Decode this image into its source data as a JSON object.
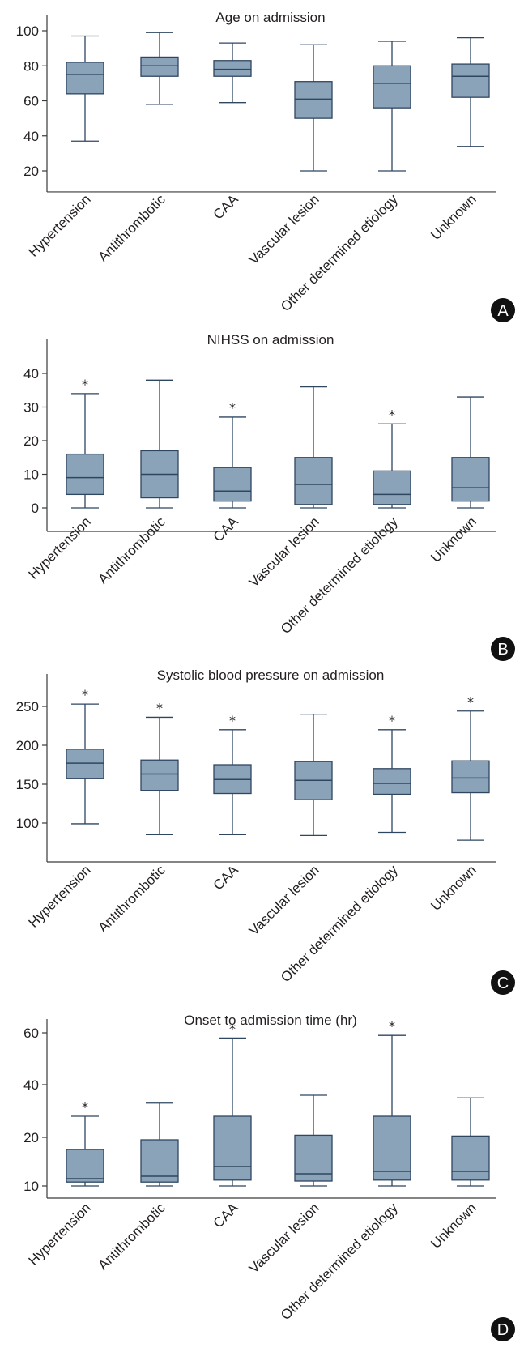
{
  "colors": {
    "box_fill": "#8ba3b8",
    "box_stroke": "#2f4661",
    "axis": "#3a3a3a",
    "badge": "#111111"
  },
  "chart_data": [
    {
      "type": "box",
      "panel": "A",
      "title": "Age on admission",
      "categories": [
        "Hypertension",
        "Antithrombotic",
        "CAA",
        "Vascular lesion",
        "Other determined etiology",
        "Unknown"
      ],
      "ylim": [
        8,
        108
      ],
      "yticks": [
        20,
        40,
        60,
        80,
        100
      ],
      "boxes": [
        {
          "min": 37,
          "q1": 64,
          "median": 75,
          "q3": 82,
          "max": 97,
          "outlier": false
        },
        {
          "min": 58,
          "q1": 74,
          "median": 80,
          "q3": 85,
          "max": 99,
          "outlier": false
        },
        {
          "min": 59,
          "q1": 74,
          "median": 78,
          "q3": 83,
          "max": 93,
          "outlier": false
        },
        {
          "min": 20,
          "q1": 50,
          "median": 61,
          "q3": 71,
          "max": 92,
          "outlier": false
        },
        {
          "min": 20,
          "q1": 56,
          "median": 70,
          "q3": 80,
          "max": 94,
          "outlier": false
        },
        {
          "min": 34,
          "q1": 62,
          "median": 74,
          "q3": 81,
          "max": 96,
          "outlier": false
        }
      ],
      "grid": false
    },
    {
      "type": "box",
      "panel": "B",
      "title": "NIHSS on admission",
      "categories": [
        "Hypertension",
        "Antithrombotic",
        "CAA",
        "Vascular lesion",
        "Other determined etiology",
        "Unknown"
      ],
      "ylim": [
        -7,
        46
      ],
      "yticks": [
        0,
        10,
        20,
        30,
        40
      ],
      "boxes": [
        {
          "min": 0,
          "q1": 4,
          "median": 9,
          "q3": 16,
          "max": 34,
          "outlier": true
        },
        {
          "min": 0,
          "q1": 3,
          "median": 10,
          "q3": 17,
          "max": 38,
          "outlier": false
        },
        {
          "min": 0,
          "q1": 2,
          "median": 5,
          "q3": 12,
          "max": 27,
          "outlier": true
        },
        {
          "min": 0,
          "q1": 1,
          "median": 7,
          "q3": 15,
          "max": 36,
          "outlier": false
        },
        {
          "min": 0,
          "q1": 1,
          "median": 4,
          "q3": 11,
          "max": 25,
          "outlier": true
        },
        {
          "min": 0,
          "q1": 2,
          "median": 6,
          "q3": 15,
          "max": 33,
          "outlier": false
        }
      ],
      "grid": false
    },
    {
      "type": "box",
      "panel": "C",
      "title": "Systolic blood pressure on admission",
      "categories": [
        "Hypertension",
        "Antithrombotic",
        "CAA",
        "Vascular lesion",
        "Other determined etiology",
        "Unknown"
      ],
      "ylim": [
        50,
        280
      ],
      "yticks": [
        100,
        150,
        200,
        250
      ],
      "boxes": [
        {
          "min": 99,
          "q1": 157,
          "median": 177,
          "q3": 195,
          "max": 253,
          "outlier": true
        },
        {
          "min": 85,
          "q1": 142,
          "median": 163,
          "q3": 181,
          "max": 236,
          "outlier": true
        },
        {
          "min": 85,
          "q1": 138,
          "median": 156,
          "q3": 175,
          "max": 220,
          "outlier": true
        },
        {
          "min": 84,
          "q1": 130,
          "median": 155,
          "q3": 179,
          "max": 240,
          "outlier": false
        },
        {
          "min": 88,
          "q1": 137,
          "median": 151,
          "q3": 170,
          "max": 220,
          "outlier": true
        },
        {
          "min": 78,
          "q1": 139,
          "median": 158,
          "q3": 180,
          "max": 244,
          "outlier": true
        }
      ],
      "grid": false
    },
    {
      "type": "box",
      "panel": "D",
      "title": "Onset to admission time (hr)",
      "categories": [
        "Hypertension",
        "Antithrombotic",
        "CAA",
        "Vascular lesion",
        "Other determined etiology",
        "Unknown"
      ],
      "ylim": [
        6,
        70
      ],
      "yticks": [
        10,
        20,
        40,
        60
      ],
      "boxes": [
        {
          "min": 10,
          "q1": 10.8,
          "median": 11.5,
          "q3": 17.5,
          "max": 28,
          "outlier": true
        },
        {
          "min": 10,
          "q1": 10.8,
          "median": 12,
          "q3": 19.5,
          "max": 33,
          "outlier": false
        },
        {
          "min": 10,
          "q1": 11.2,
          "median": 14,
          "q3": 28,
          "max": 58,
          "outlier": true
        },
        {
          "min": 10,
          "q1": 11,
          "median": 12.5,
          "q3": 20.8,
          "max": 36,
          "outlier": false
        },
        {
          "min": 10,
          "q1": 11.2,
          "median": 13,
          "q3": 28,
          "max": 59,
          "outlier": true
        },
        {
          "min": 10,
          "q1": 11.2,
          "median": 13,
          "q3": 20.5,
          "max": 35,
          "outlier": false
        }
      ],
      "grid": false
    }
  ],
  "outlier_symbol": "*"
}
